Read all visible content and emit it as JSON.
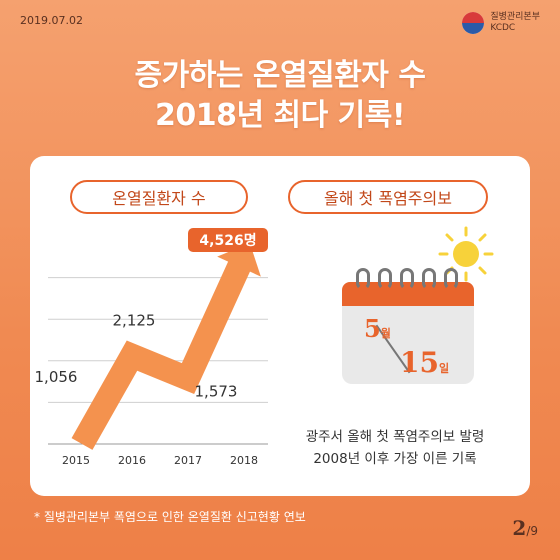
{
  "header": {
    "date": "2019.07.02",
    "org_name": "질병관리본부",
    "org_abbr": "KCDC"
  },
  "title": {
    "line1": "증가하는 온열질환자 수",
    "line2": "2018년 최다 기록!"
  },
  "left_panel": {
    "label": "온열질환자 수",
    "highlight_value": "4,526명"
  },
  "chart_data": {
    "type": "line",
    "categories": [
      "2015",
      "2016",
      "2017",
      "2018"
    ],
    "values": [
      1056,
      2125,
      1573,
      4526
    ],
    "data_labels": [
      "1,056",
      "2,125",
      "1,573",
      "4,526명"
    ],
    "title": "온열질환자 수",
    "xlabel": "",
    "ylabel": "",
    "ylim": [
      0,
      5000
    ],
    "grid": true,
    "colors": {
      "line": "#f4924e",
      "highlight": "#e8642c"
    }
  },
  "right_panel": {
    "label": "올해 첫 폭염주의보",
    "calendar": {
      "month": "5",
      "month_unit": "월",
      "day": "15",
      "day_unit": "일"
    },
    "description_line1": "광주서 올해 첫 폭염주의보 발령",
    "description_line2": "2008년 이후 가장 이른 기록"
  },
  "footnote": "* 질병관리본부 폭염으로 인한 온열질환 신고현황 연보",
  "pagination": {
    "current": "2",
    "total": "/9"
  },
  "colors": {
    "accent": "#e8642c",
    "background": "#f08a52",
    "card": "#ffffff"
  }
}
